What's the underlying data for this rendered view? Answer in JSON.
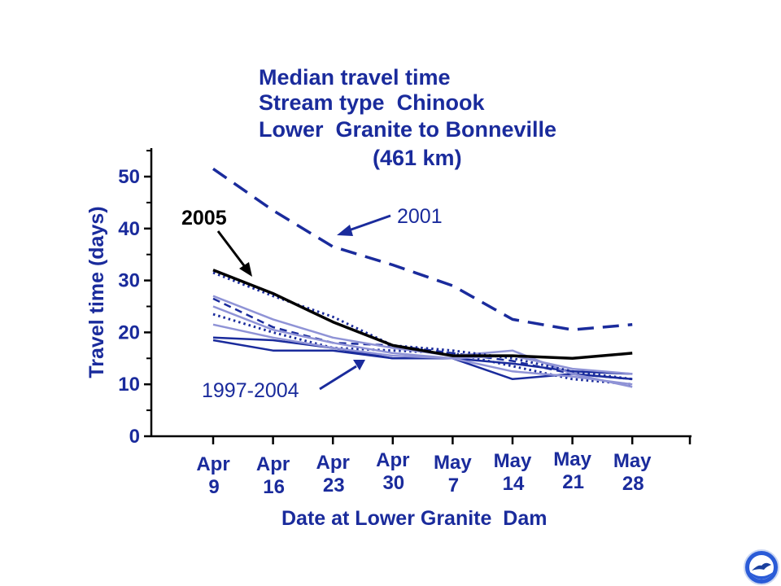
{
  "chart_data": {
    "type": "line",
    "title": [
      "Median travel time",
      "Stream type  Chinook",
      "Lower  Granite to Bonneville",
      "(461 km)"
    ],
    "xlabel": "Date at Lower Granite  Dam",
    "ylabel": "Travel time (days)",
    "x_ticks": [
      [
        "Apr",
        "9"
      ],
      [
        "Apr",
        "16"
      ],
      [
        "Apr",
        "23"
      ],
      [
        "Apr",
        "30"
      ],
      [
        "May",
        "7"
      ],
      [
        "May",
        "14"
      ],
      [
        "May",
        "21"
      ],
      [
        "May",
        "28"
      ]
    ],
    "y_ticks": [
      "0",
      "10",
      "20",
      "30",
      "40",
      "50"
    ],
    "ylim": [
      0,
      55
    ],
    "grid": false,
    "series": [
      {
        "name": "1997-2004",
        "color": "#1a2b9c",
        "style": "solid",
        "x": [
          0,
          1,
          2,
          3,
          4,
          5,
          6,
          7
        ],
        "values": [
          18.5,
          16.5,
          16.5,
          15,
          15,
          11,
          12,
          11
        ]
      },
      {
        "name": "1997-2004",
        "color": "#1a2b9c",
        "style": "dashed",
        "x": [
          0,
          1,
          2,
          3,
          4,
          5,
          6,
          7
        ],
        "values": [
          26.5,
          21,
          18,
          17.5,
          16,
          14.5,
          12,
          11
        ]
      },
      {
        "name": "1997-2004",
        "color": "#1a2b9c",
        "style": "dotted",
        "x": [
          0,
          1,
          2,
          3,
          4,
          5,
          6,
          7
        ],
        "values": [
          23.5,
          20,
          17,
          16.5,
          16,
          13.5,
          11,
          10
        ]
      },
      {
        "name": "1997-2004",
        "color": "#1a2b9c",
        "style": "solid",
        "x": [
          0,
          1,
          2,
          3,
          4,
          5,
          6,
          7
        ],
        "values": [
          19,
          18.5,
          17,
          15,
          15,
          14,
          12.5,
          12
        ]
      },
      {
        "name": "1997-2004",
        "color": "#8f93d6",
        "style": "solid",
        "x": [
          0,
          1,
          2,
          3,
          4,
          5,
          6,
          7
        ],
        "values": [
          27,
          22.5,
          19,
          17,
          15.5,
          16.5,
          12,
          9.5
        ]
      },
      {
        "name": "1997-2004",
        "color": "#8f93d6",
        "style": "solid",
        "x": [
          0,
          1,
          2,
          3,
          4,
          5,
          6,
          7
        ],
        "values": [
          25,
          20.5,
          18,
          16,
          15,
          12.5,
          11.5,
          10
        ]
      },
      {
        "name": "1997-2004",
        "color": "#8f93d6",
        "style": "solid",
        "x": [
          0,
          1,
          2,
          3,
          4,
          5,
          6,
          7
        ],
        "values": [
          21.5,
          19,
          17,
          15.5,
          15,
          15.5,
          13,
          12
        ]
      },
      {
        "name": "1997-2004",
        "color": "#1a2b9c",
        "style": "dotted",
        "x": [
          0,
          1,
          2,
          3,
          4,
          5,
          6,
          7
        ],
        "values": [
          31.5,
          27,
          23,
          17.5,
          16.5,
          15,
          12.5,
          11
        ]
      },
      {
        "name": "2001",
        "color": "#1a2b9c",
        "style": "dashed-bold",
        "x": [
          0,
          1,
          2,
          3,
          4,
          5,
          6,
          7
        ],
        "values": [
          51.5,
          43.5,
          36.5,
          33,
          29,
          22.5,
          20.5,
          21.5
        ]
      },
      {
        "name": "2005",
        "color": "#000000",
        "style": "solid-bold",
        "x": [
          0,
          1,
          2,
          3,
          4,
          5,
          6,
          7
        ],
        "values": [
          32,
          27.5,
          22,
          17.5,
          15.5,
          15.5,
          15,
          16
        ]
      }
    ],
    "annotations": [
      {
        "text": "2005",
        "color": "#000000",
        "points_to_series": "2005"
      },
      {
        "text": "2001",
        "color": "#1a2b9c",
        "points_to_series": "2001"
      },
      {
        "text": "1997-2004",
        "color": "#1a2b9c",
        "points_to_series": "1997-2004"
      }
    ]
  },
  "logo": {
    "text": "NOAA",
    "icon": "noaa-logo-icon",
    "colors": {
      "outer": "#2a5bd7",
      "inner": "#ffffff",
      "gull": "#1a3f9e"
    }
  }
}
